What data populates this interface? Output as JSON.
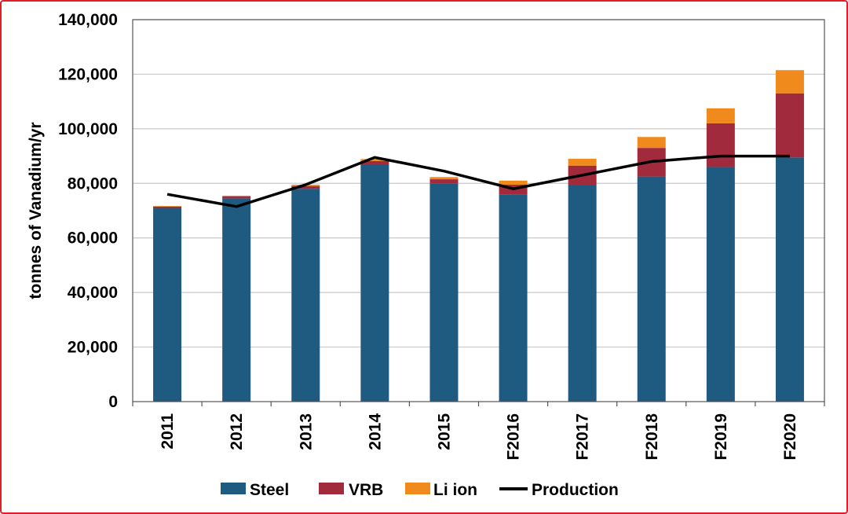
{
  "chart_data": {
    "type": "bar",
    "stacked": true,
    "categories": [
      "2011",
      "2012",
      "2013",
      "2014",
      "2015",
      "F2016",
      "F2017",
      "F2018",
      "F2019",
      "F2020"
    ],
    "ylabel": "tonnes of Vanadium/yr",
    "xlabel": "",
    "title": "",
    "ylim": [
      0,
      140000
    ],
    "yticks": [
      0,
      20000,
      40000,
      60000,
      80000,
      100000,
      120000,
      140000
    ],
    "ytick_labels": [
      "0",
      "20,000",
      "40,000",
      "60,000",
      "80,000",
      "100,000",
      "120,000",
      "140,000"
    ],
    "grid": true,
    "legend_position": "bottom",
    "series": [
      {
        "name": "Steel",
        "kind": "bar",
        "color": "#1f5a80",
        "values": [
          71000,
          74500,
          78000,
          87000,
          80000,
          76000,
          79500,
          82500,
          86000,
          89500
        ]
      },
      {
        "name": "VRB",
        "kind": "bar",
        "color": "#a12a3c",
        "values": [
          500,
          700,
          1000,
          1200,
          1500,
          3500,
          7000,
          10500,
          16000,
          23500
        ]
      },
      {
        "name": "Li ion",
        "kind": "bar",
        "color": "#f08a1c",
        "values": [
          200,
          300,
          500,
          700,
          800,
          1500,
          2500,
          4000,
          5500,
          8500
        ]
      },
      {
        "name": "Production",
        "kind": "line",
        "color": "#000000",
        "values": [
          76000,
          71500,
          79500,
          89500,
          84500,
          78000,
          83000,
          88000,
          90000,
          90000
        ]
      }
    ]
  }
}
